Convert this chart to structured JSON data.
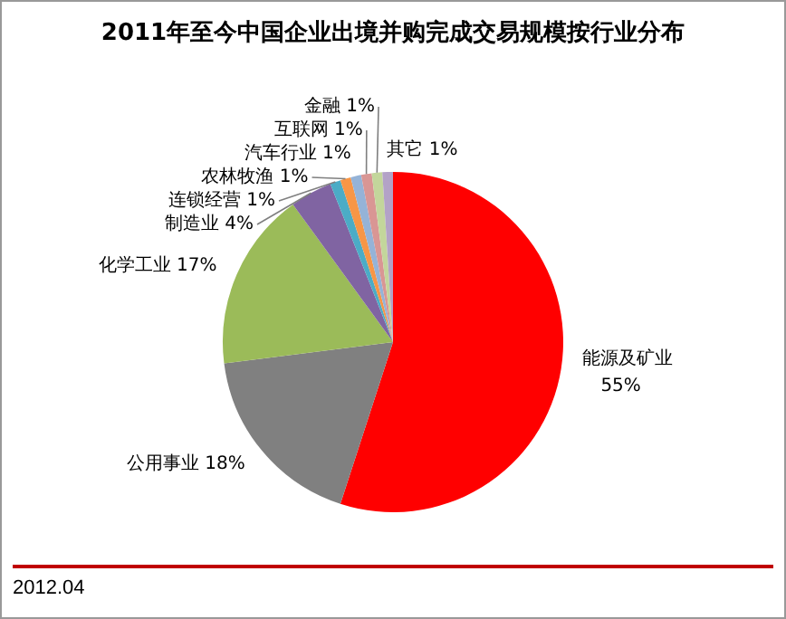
{
  "chart_data": {
    "type": "pie",
    "title": "2011年至今中国企业出境并购完成交易规模按行业分布",
    "categories": [
      "能源及矿业",
      "公用事业",
      "化学工业",
      "制造业",
      "连锁经营",
      "农林牧渔",
      "汽车行业",
      "互联网",
      "金融",
      "其它"
    ],
    "values": [
      55,
      18,
      17,
      4,
      1,
      1,
      1,
      1,
      1,
      1
    ],
    "colors": [
      "#ff0000",
      "#808080",
      "#9bbb59",
      "#8064a2",
      "#4bacc6",
      "#f79646",
      "#95b3d7",
      "#d99694",
      "#c3d69b",
      "#b3a2c7"
    ],
    "value_labels": [
      "55%",
      "18%",
      "17%",
      "4%",
      "1%",
      "1%",
      "1%",
      "1%",
      "1%",
      "1%"
    ],
    "annotations": [
      "2012.04"
    ],
    "legend": false
  }
}
